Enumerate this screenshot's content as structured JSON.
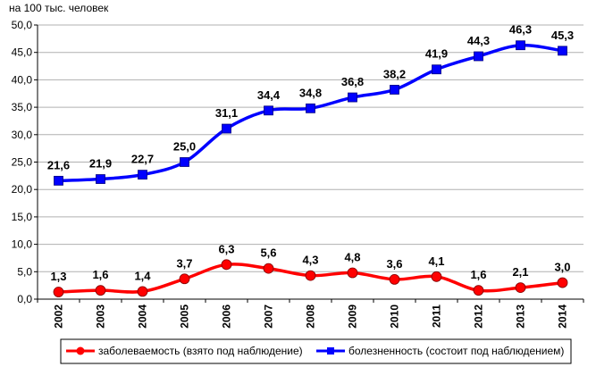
{
  "chart_data": {
    "type": "line",
    "unit_label": "на 100 тыс. человек",
    "x": [
      "2002",
      "2003",
      "2004",
      "2005",
      "2006",
      "2007",
      "2008",
      "2009",
      "2010",
      "2011",
      "2012",
      "2013",
      "2014"
    ],
    "ylim": [
      0,
      50
    ],
    "yticks": [
      "0,0",
      "5,0",
      "10,0",
      "15,0",
      "20,0",
      "25,0",
      "30,0",
      "35,0",
      "40,0",
      "45,0",
      "50,0"
    ],
    "grid": "horizontal",
    "legend_position": "bottom",
    "series": [
      {
        "name": "заболеваемость (взято под наблюдение)",
        "color": "#ff0000",
        "marker": "circle",
        "values": [
          1.3,
          1.6,
          1.4,
          3.7,
          6.3,
          5.6,
          4.3,
          4.8,
          3.6,
          4.1,
          1.6,
          2.1,
          3.0
        ],
        "labels": [
          "1,3",
          "1,6",
          "1,4",
          "3,7",
          "6,3",
          "5,6",
          "4,3",
          "4,8",
          "3,6",
          "4,1",
          "1,6",
          "2,1",
          "3,0"
        ]
      },
      {
        "name": "болезненность (состоит под наблюдением)",
        "color": "#0000ff",
        "marker": "square",
        "values": [
          21.6,
          21.9,
          22.7,
          25.0,
          31.1,
          34.4,
          34.8,
          36.8,
          38.2,
          41.9,
          44.3,
          46.3,
          45.3
        ],
        "labels": [
          "21,6",
          "21,9",
          "22,7",
          "25,0",
          "31,1",
          "34,4",
          "34,8",
          "36,8",
          "38,2",
          "41,9",
          "44,3",
          "46,3",
          "45,3"
        ]
      }
    ]
  }
}
